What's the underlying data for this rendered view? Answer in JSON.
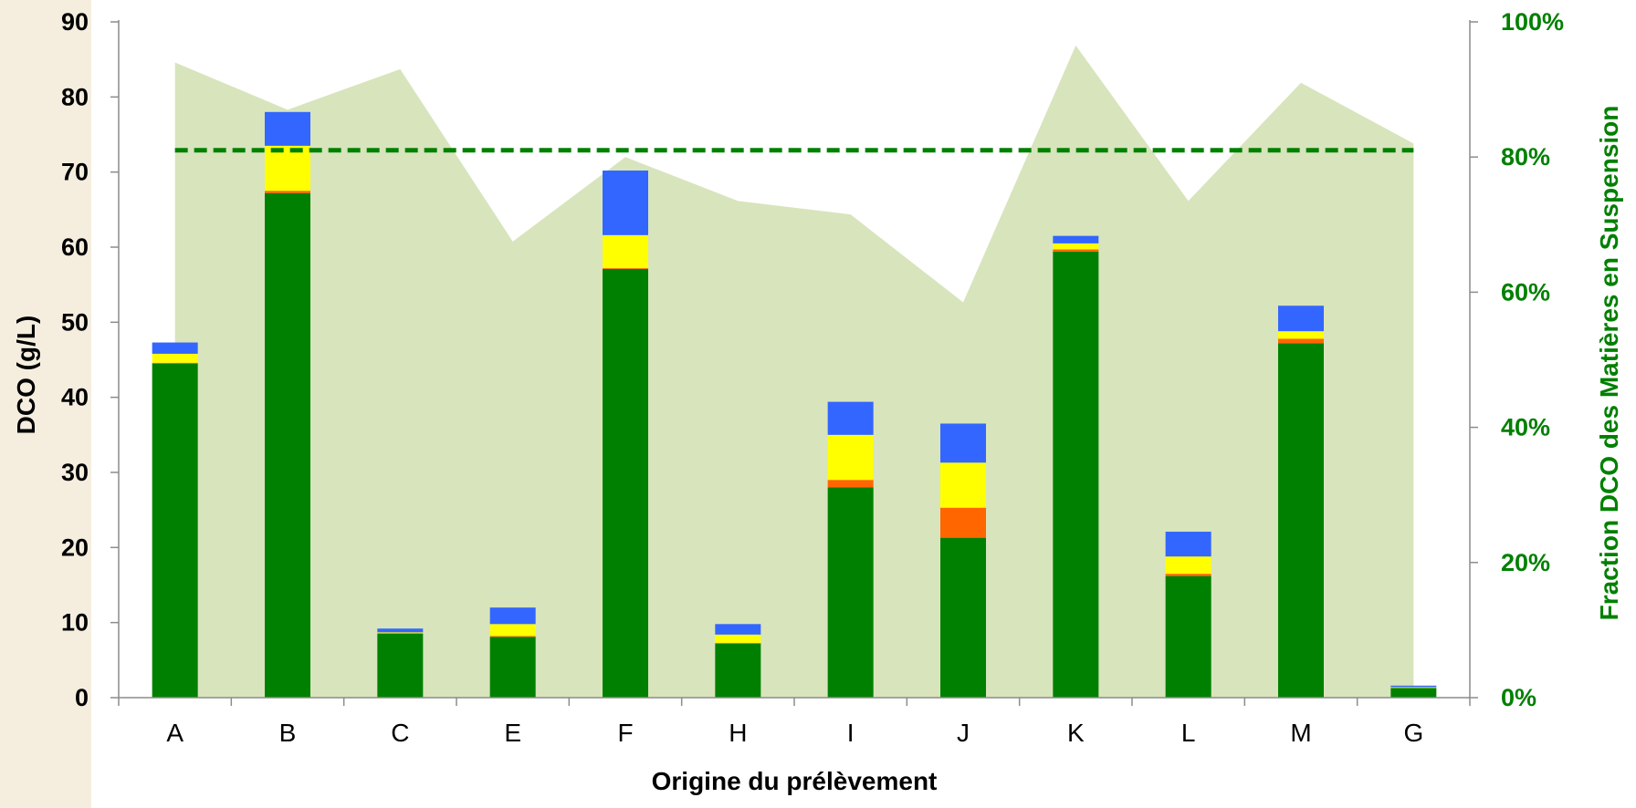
{
  "chart_data": {
    "type": "bar",
    "stacked": true,
    "title": "",
    "xlabel": "Origine du prélèvement",
    "ylabel": "DCO (g/L)",
    "y2label": "Fraction DCO des Matières en Suspension",
    "ylim": [
      0,
      90
    ],
    "y_ticks": [
      "0",
      "10",
      "20",
      "30",
      "40",
      "50",
      "60",
      "70",
      "80",
      "90"
    ],
    "y2lim": [
      0,
      100
    ],
    "y2_ticks": [
      "0%",
      "20%",
      "40%",
      "60%",
      "80%",
      "100%"
    ],
    "grid": false,
    "legend": "none",
    "categories": [
      "A",
      "B",
      "C",
      "E",
      "F",
      "H",
      "I",
      "J",
      "K",
      "L",
      "M",
      "G"
    ],
    "series": [
      {
        "color": "#008000",
        "values": [
          44.5,
          67.2,
          8.5,
          8.1,
          57.1,
          7.2,
          28.0,
          21.3,
          59.4,
          16.2,
          47.2,
          1.3
        ]
      },
      {
        "color": "#ff6600",
        "values": [
          0.1,
          0.3,
          0.1,
          0.1,
          0.1,
          0.1,
          1.0,
          4.0,
          0.3,
          0.3,
          0.6,
          0.0
        ]
      },
      {
        "color": "#ffff00",
        "values": [
          1.2,
          6.0,
          0.1,
          1.6,
          4.4,
          1.1,
          6.0,
          6.0,
          0.8,
          2.3,
          1.0,
          0.1
        ]
      },
      {
        "color": "#3366ff",
        "values": [
          1.5,
          4.5,
          0.5,
          2.2,
          8.6,
          1.4,
          4.4,
          5.2,
          1.0,
          3.3,
          3.4,
          0.2
        ]
      }
    ],
    "fraction_area": {
      "color": "#d8e4bc",
      "axis": "secondary",
      "values_pct": [
        94,
        87,
        93,
        67.5,
        80,
        73.5,
        71.5,
        58.5,
        96.5,
        73.5,
        91,
        82
      ]
    },
    "average_line": {
      "color": "#008000",
      "style": "dashed",
      "axis": "secondary",
      "value_pct": 81
    }
  },
  "page": {
    "left_strip_color": "#f5eedf"
  }
}
